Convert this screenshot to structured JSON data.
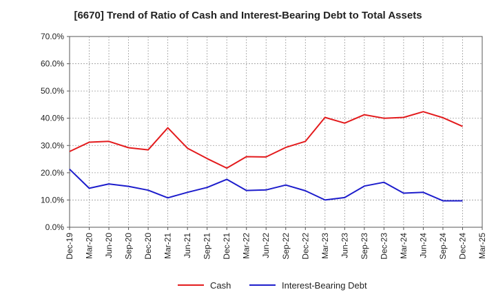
{
  "chart_data": {
    "type": "line",
    "title": "[6670]  Trend of Ratio of Cash and Interest-Bearing Debt to Total Assets",
    "xlabel": "",
    "ylabel": "",
    "categories": [
      "Dec-19",
      "Mar-20",
      "Jun-20",
      "Sep-20",
      "Dec-20",
      "Mar-21",
      "Jun-21",
      "Sep-21",
      "Dec-21",
      "Mar-22",
      "Jun-22",
      "Sep-22",
      "Dec-22",
      "Mar-23",
      "Jun-23",
      "Sep-23",
      "Dec-23",
      "Mar-24",
      "Jun-24",
      "Sep-24",
      "Dec-24",
      "Mar-25"
    ],
    "ylim": [
      0,
      70
    ],
    "yticks": [
      "0.0%",
      "10.0%",
      "20.0%",
      "30.0%",
      "40.0%",
      "50.0%",
      "60.0%",
      "70.0%"
    ],
    "grid": true,
    "legend_position": "bottom",
    "series": [
      {
        "name": "Cash",
        "color": "#e31a1c",
        "values": [
          27.8,
          31.2,
          31.5,
          29.2,
          28.4,
          36.5,
          29.0,
          25.2,
          21.7,
          25.9,
          25.8,
          29.3,
          31.5,
          40.3,
          38.2,
          41.3,
          40.0,
          40.3,
          42.4,
          40.2,
          37.0,
          null
        ]
      },
      {
        "name": "Interest-Bearing Debt",
        "color": "#1c1ccc",
        "values": [
          21.3,
          14.3,
          15.9,
          15.0,
          13.6,
          10.8,
          12.8,
          14.6,
          17.6,
          13.5,
          13.7,
          15.5,
          13.4,
          10.0,
          10.9,
          15.1,
          16.5,
          12.5,
          12.8,
          9.7,
          9.7,
          null
        ]
      }
    ]
  }
}
